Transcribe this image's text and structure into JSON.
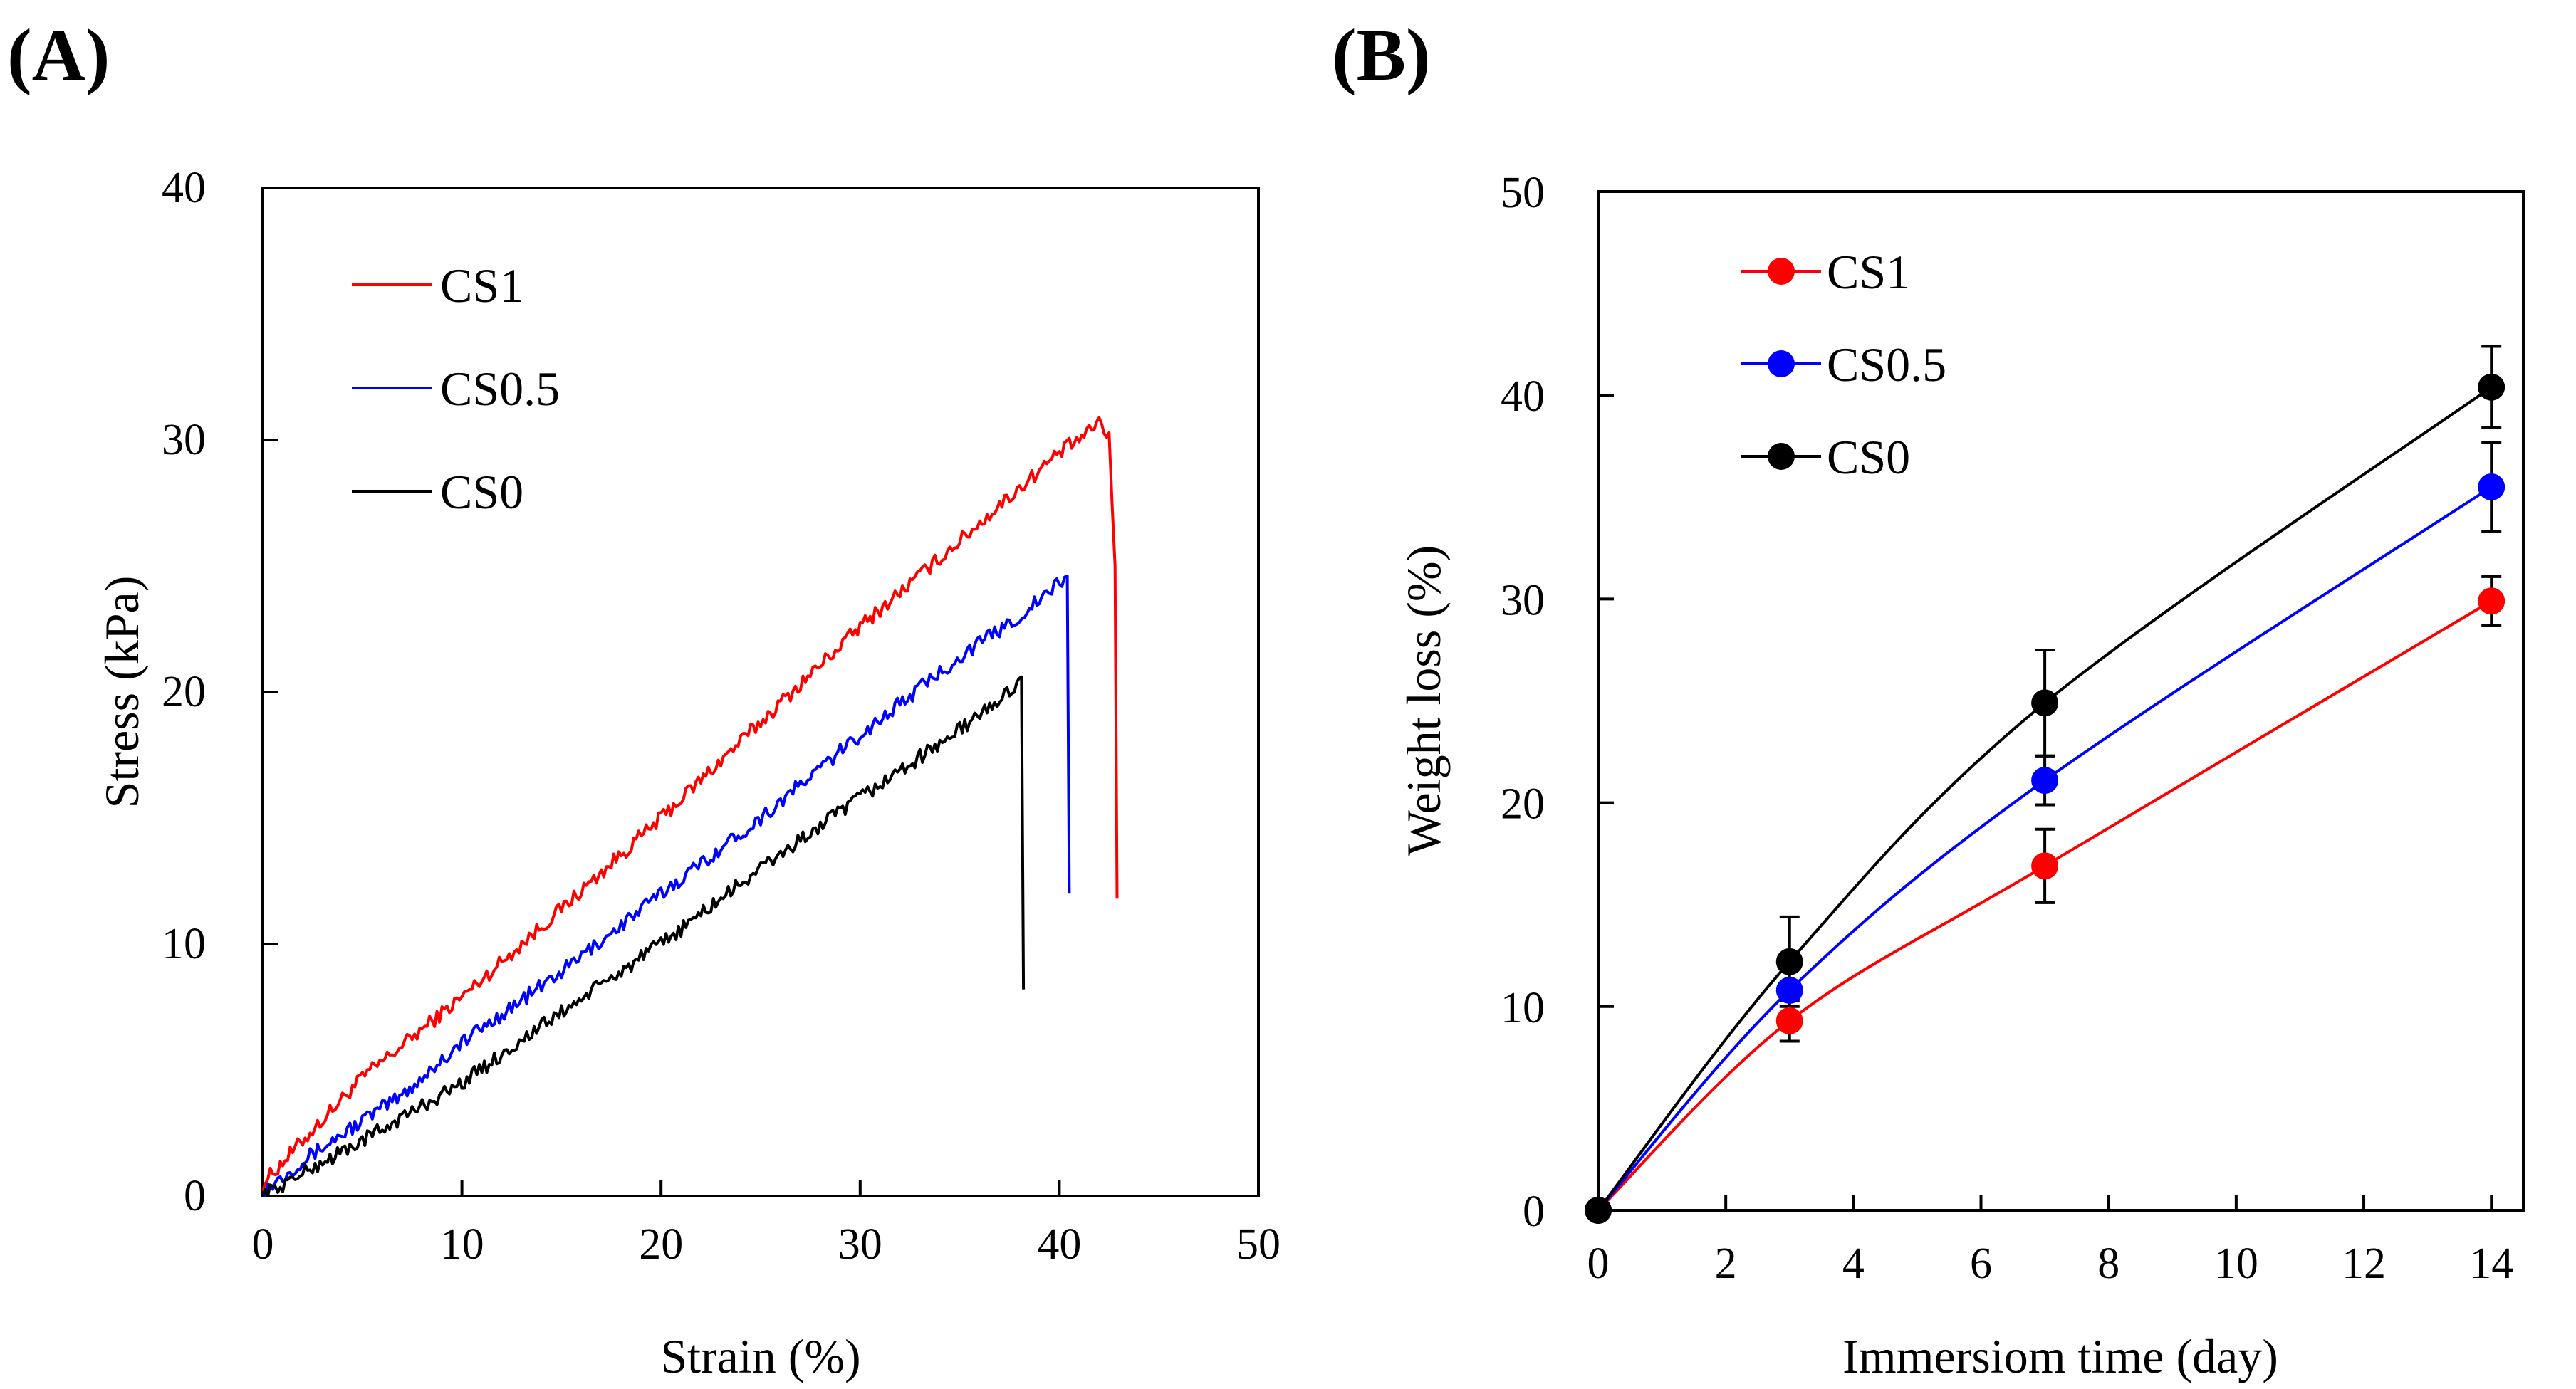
{
  "chart_data": [
    {
      "panel_label": "(A)",
      "type": "line",
      "xlabel": "Strain (%)",
      "ylabel": "Stress (kPa)",
      "xlim": [
        0,
        50
      ],
      "ylim": [
        0,
        40
      ],
      "xticks": [
        0,
        10,
        20,
        30,
        40,
        50
      ],
      "yticks": [
        0,
        10,
        20,
        30,
        40
      ],
      "legend": "top-left",
      "series": [
        {
          "name": "CS1",
          "color": "#ff0000",
          "x": [
            0,
            2,
            5,
            10,
            15,
            20,
            25,
            30,
            35,
            40,
            41.5,
            42,
            42.5,
            42.8,
            42.9
          ],
          "y": [
            0.5,
            2.2,
            4.7,
            7.9,
            11.4,
            15.0,
            18.8,
            22.6,
            26.0,
            29.5,
            30.3,
            30.8,
            30.0,
            25.0,
            11.8
          ]
        },
        {
          "name": "CS0.5",
          "color": "#0000ff",
          "x": [
            0,
            2,
            5,
            7,
            10,
            15,
            20,
            25,
            30,
            35,
            38,
            40,
            40.4,
            40.5
          ],
          "y": [
            0.2,
            1.4,
            3.0,
            4.0,
            6.1,
            8.9,
            12.0,
            15.0,
            18.3,
            21.4,
            23.0,
            24.3,
            24.6,
            12.0
          ]
        },
        {
          "name": "CS0",
          "color": "#000000",
          "x": [
            0,
            2,
            5,
            10,
            15,
            20,
            25,
            30,
            35,
            37.5,
            38.1,
            38.2
          ],
          "y": [
            0,
            0.9,
            2.2,
            4.5,
            7.3,
            10.0,
            13.0,
            15.8,
            18.5,
            20.0,
            20.6,
            8.2
          ]
        }
      ]
    },
    {
      "panel_label": "(B)",
      "type": "line",
      "xlabel": "Immersiom time (day)",
      "ylabel": "Weight loss (%)",
      "xlim": [
        0,
        14.5
      ],
      "ylim": [
        0,
        50
      ],
      "xticks": [
        0,
        2,
        4,
        6,
        8,
        10,
        12,
        14
      ],
      "yticks": [
        0,
        10,
        20,
        30,
        40,
        50
      ],
      "legend": "top-left",
      "series": [
        {
          "name": "CS1",
          "color": "#ff0000",
          "x": [
            0,
            3,
            7,
            14
          ],
          "y": [
            0,
            9.3,
            16.9,
            29.9
          ],
          "error": [
            0,
            1.0,
            1.8,
            1.2
          ]
        },
        {
          "name": "CS0.5",
          "color": "#0000ff",
          "x": [
            0,
            3,
            7,
            14
          ],
          "y": [
            0,
            10.8,
            21.1,
            35.5
          ],
          "error": [
            0,
            0,
            1.2,
            2.2
          ]
        },
        {
          "name": "CS0",
          "color": "#000000",
          "x": [
            0,
            3,
            7,
            14
          ],
          "y": [
            0,
            12.2,
            24.9,
            40.4
          ],
          "error": [
            0,
            2.2,
            2.6,
            2.0
          ]
        }
      ]
    }
  ]
}
